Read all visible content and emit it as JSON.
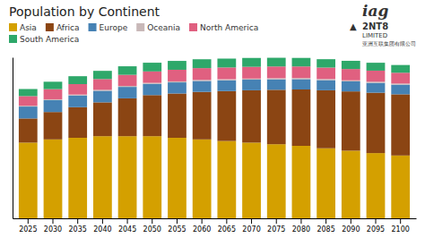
{
  "chart_data": {
    "type": "bar",
    "stacked": true,
    "title": "Population by Continent",
    "categories": [
      "2025",
      "2030",
      "2035",
      "2040",
      "2045",
      "2050",
      "2055",
      "2060",
      "2065",
      "2070",
      "2075",
      "2080",
      "2085",
      "2090",
      "2095",
      "2100"
    ],
    "series": [
      {
        "name": "Asia",
        "color": "#d4a000",
        "values": [
          4.7,
          4.9,
          5.0,
          5.1,
          5.1,
          5.1,
          5.0,
          4.9,
          4.8,
          4.7,
          4.6,
          4.5,
          4.35,
          4.2,
          4.05,
          3.9
        ]
      },
      {
        "name": "Africa",
        "color": "#8b4513",
        "values": [
          1.5,
          1.7,
          1.9,
          2.1,
          2.35,
          2.55,
          2.75,
          2.95,
          3.1,
          3.25,
          3.38,
          3.5,
          3.6,
          3.68,
          3.75,
          3.8
        ]
      },
      {
        "name": "Europe",
        "color": "#4682b4",
        "values": [
          0.74,
          0.74,
          0.73,
          0.72,
          0.71,
          0.7,
          0.69,
          0.68,
          0.67,
          0.66,
          0.65,
          0.64,
          0.63,
          0.62,
          0.61,
          0.6
        ]
      },
      {
        "name": "Oceania",
        "color": "#c8b8b8",
        "values": [
          0.048,
          0.051,
          0.054,
          0.057,
          0.06,
          0.062,
          0.064,
          0.066,
          0.067,
          0.068,
          0.069,
          0.07,
          0.07,
          0.07,
          0.07,
          0.069
        ]
      },
      {
        "name": "North America",
        "color": "#e06080",
        "values": [
          0.6,
          0.63,
          0.65,
          0.67,
          0.69,
          0.71,
          0.72,
          0.73,
          0.73,
          0.73,
          0.73,
          0.72,
          0.71,
          0.7,
          0.69,
          0.67
        ]
      },
      {
        "name": "South America",
        "color": "#2ea86a",
        "values": [
          0.44,
          0.46,
          0.49,
          0.51,
          0.53,
          0.54,
          0.55,
          0.55,
          0.55,
          0.55,
          0.54,
          0.53,
          0.52,
          0.51,
          0.49,
          0.48
        ]
      }
    ],
    "ylim": [
      0,
      10
    ],
    "tick_labels": "x",
    "grid": false,
    "legend": "top",
    "annotations": [
      "▲",
      "2NT8",
      "LIMITED",
      "亚洲互联集团有限公司",
      "iag"
    ]
  }
}
